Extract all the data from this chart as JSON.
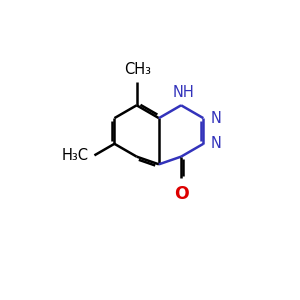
{
  "bg_color": "#ffffff",
  "bond_black": "#000000",
  "bond_blue": "#3333bb",
  "bond_red": "#dd0000",
  "text_black": "#000000",
  "text_blue": "#3333bb",
  "text_red": "#dd0000",
  "lw": 1.8,
  "fs": 10.5,
  "bl": 1.0,
  "figsize": [
    3.0,
    3.0
  ],
  "dpi": 100,
  "xlim": [
    0,
    9
  ],
  "ylim": [
    0,
    9
  ]
}
